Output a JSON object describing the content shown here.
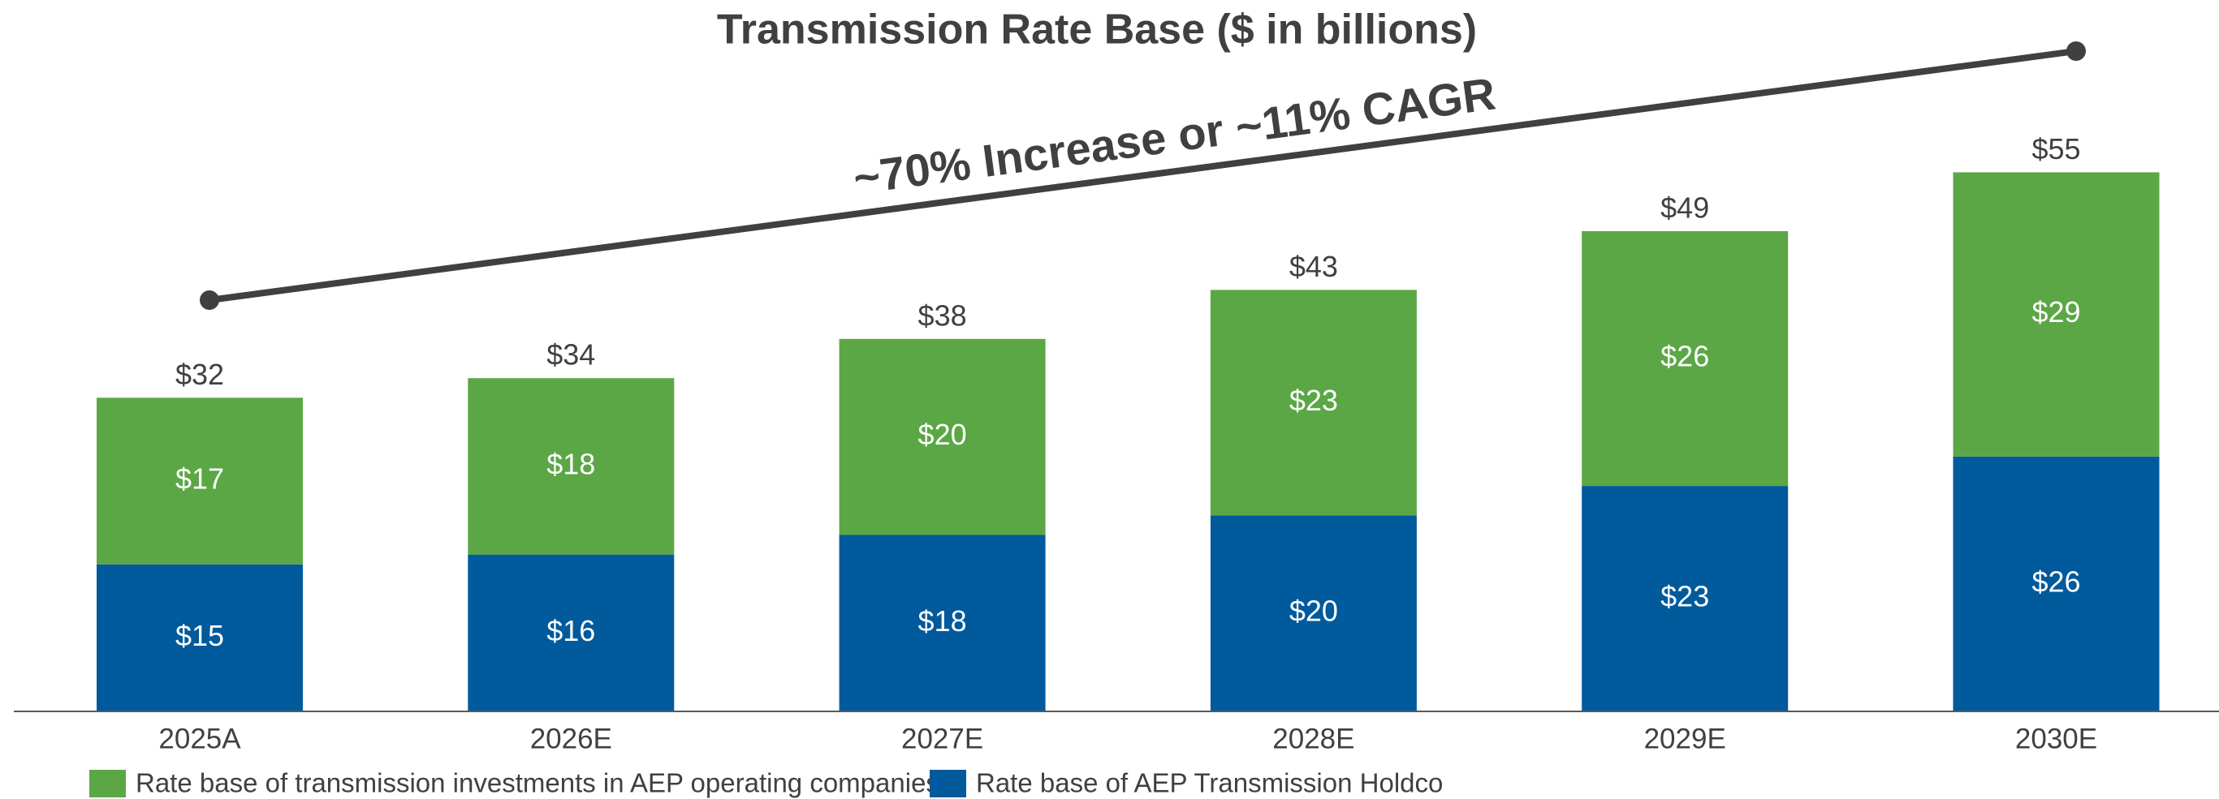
{
  "chart_data": {
    "type": "stacked-bar",
    "title": "Transmission Rate Base ($ in billions)",
    "annotation": "~70% Increase or ~11% CAGR",
    "categories": [
      "2025A",
      "2026E",
      "2027E",
      "2028E",
      "2029E",
      "2030E"
    ],
    "series": [
      {
        "name": "Rate base of AEP Transmission Holdco",
        "color": "#005a9c",
        "values": [
          15,
          16,
          18,
          20,
          23,
          26
        ],
        "value_labels": [
          "$15",
          "$16",
          "$18",
          "$20",
          "$23",
          "$26"
        ]
      },
      {
        "name": "Rate base of transmission investments in AEP operating companies",
        "color": "#5ba745",
        "values": [
          17,
          18,
          20,
          23,
          26,
          29
        ],
        "value_labels": [
          "$17",
          "$18",
          "$20",
          "$23",
          "$26",
          "$29"
        ]
      }
    ],
    "totals": [
      32,
      34,
      38,
      43,
      49,
      55
    ],
    "total_labels": [
      "$32",
      "$34",
      "$38",
      "$43",
      "$49",
      "$55"
    ],
    "ylim": [
      0,
      60
    ]
  }
}
